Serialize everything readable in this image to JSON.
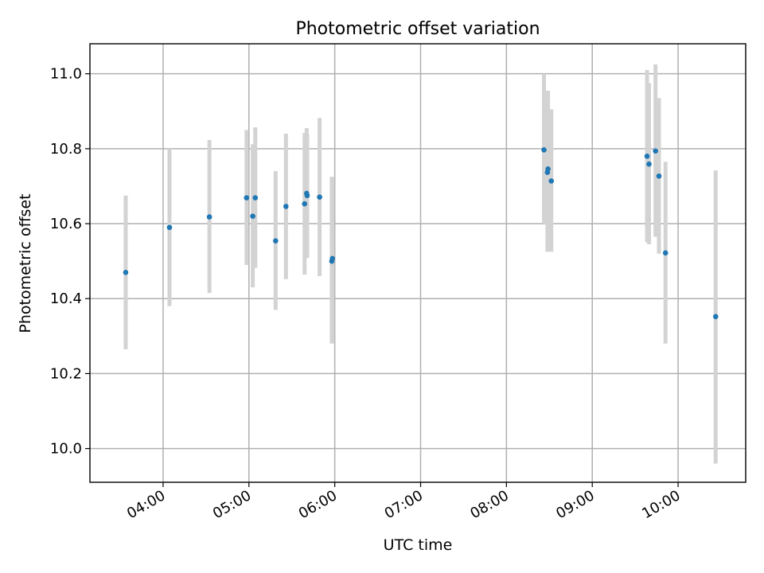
{
  "chart_data": {
    "type": "scatter",
    "title": "Photometric offset variation",
    "xlabel": "UTC time",
    "ylabel": "Photometric offset",
    "x_tick_labels": [
      "04:00",
      "05:00",
      "06:00",
      "07:00",
      "08:00",
      "09:00",
      "10:00"
    ],
    "x_tick_hours": [
      4,
      5,
      6,
      7,
      8,
      9,
      10
    ],
    "y_ticks": [
      10.0,
      10.2,
      10.4,
      10.6,
      10.8,
      11.0
    ],
    "y_tick_labels": [
      "10.0",
      "10.2",
      "10.4",
      "10.6",
      "10.8",
      "11.0"
    ],
    "xlim_hours": [
      3.1474,
      10.7875
    ],
    "ylim": [
      9.91,
      11.08
    ],
    "grid": true,
    "marker_color": "#1f77b4",
    "errorbar_color": "#d3d3d3",
    "points": [
      {
        "t": 3.5642,
        "y": 10.47,
        "lo": 10.265,
        "hi": 10.675
      },
      {
        "t": 4.0744,
        "y": 10.59,
        "lo": 10.38,
        "hi": 10.8
      },
      {
        "t": 4.5396,
        "y": 10.618,
        "lo": 10.415,
        "hi": 10.823
      },
      {
        "t": 4.972,
        "y": 10.669,
        "lo": 10.49,
        "hi": 10.85
      },
      {
        "t": 5.0446,
        "y": 10.62,
        "lo": 10.43,
        "hi": 10.812
      },
      {
        "t": 5.0737,
        "y": 10.669,
        "lo": 10.482,
        "hi": 10.857
      },
      {
        "t": 5.3107,
        "y": 10.554,
        "lo": 10.37,
        "hi": 10.74
      },
      {
        "t": 5.4311,
        "y": 10.646,
        "lo": 10.452,
        "hi": 10.84
      },
      {
        "t": 5.6484,
        "y": 10.653,
        "lo": 10.464,
        "hi": 10.842
      },
      {
        "t": 5.6725,
        "y": 10.681,
        "lo": 10.508,
        "hi": 10.855
      },
      {
        "t": 5.6785,
        "y": 10.675,
        "lo": 10.51,
        "hi": 10.84
      },
      {
        "t": 5.8231,
        "y": 10.671,
        "lo": 10.46,
        "hi": 10.882
      },
      {
        "t": 5.9655,
        "y": 10.5,
        "lo": 10.28,
        "hi": 10.725
      },
      {
        "t": 5.9725,
        "y": 10.507,
        "lo": 10.285,
        "hi": 10.72
      },
      {
        "t": 8.4373,
        "y": 10.797,
        "lo": 10.6,
        "hi": 11.0
      },
      {
        "t": 8.4774,
        "y": 10.737,
        "lo": 10.525,
        "hi": 10.95
      },
      {
        "t": 8.4844,
        "y": 10.746,
        "lo": 10.54,
        "hi": 10.955
      },
      {
        "t": 8.5226,
        "y": 10.714,
        "lo": 10.525,
        "hi": 10.905
      },
      {
        "t": 9.6381,
        "y": 10.78,
        "lo": 10.55,
        "hi": 11.01
      },
      {
        "t": 9.6612,
        "y": 10.759,
        "lo": 10.545,
        "hi": 10.975
      },
      {
        "t": 9.7367,
        "y": 10.794,
        "lo": 10.565,
        "hi": 11.025
      },
      {
        "t": 9.7769,
        "y": 10.727,
        "lo": 10.52,
        "hi": 10.935
      },
      {
        "t": 9.8533,
        "y": 10.522,
        "lo": 10.28,
        "hi": 10.765
      },
      {
        "t": 10.4375,
        "y": 10.352,
        "lo": 9.96,
        "hi": 10.742
      }
    ]
  }
}
